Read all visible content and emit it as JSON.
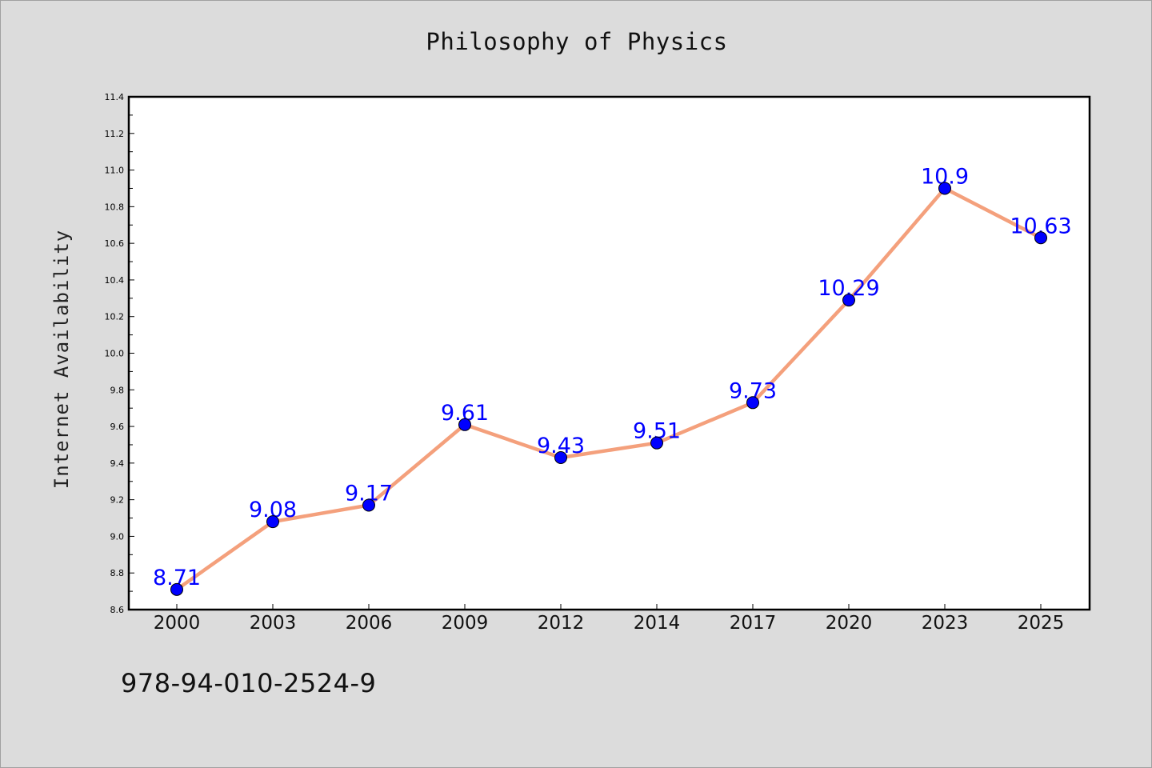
{
  "chart_data": {
    "type": "line",
    "title": "Philosophy of Physics",
    "xlabel": "",
    "ylabel": "Internet Availability",
    "categories": [
      "2000",
      "2003",
      "2006",
      "2009",
      "2012",
      "2014",
      "2017",
      "2020",
      "2023",
      "2025"
    ],
    "series": [
      {
        "values": [
          8.71,
          9.08,
          9.17,
          9.61,
          9.43,
          9.51,
          9.73,
          10.29,
          10.9,
          10.63
        ],
        "data_labels": [
          "8.71",
          "9.08",
          "9.17",
          "9.61",
          "9.43",
          "9.51",
          "9.73",
          "10.29",
          "10.9",
          "10.63"
        ]
      }
    ],
    "ylim": [
      8.6,
      11.4
    ],
    "yticks": [
      "8.6",
      "8.8",
      "9.0",
      "9.2",
      "9.4",
      "9.6",
      "9.8",
      "10.0",
      "10.2",
      "10.4",
      "10.6",
      "10.8",
      "11.0",
      "11.2",
      "11.4"
    ],
    "grid": false,
    "legend": "none",
    "colors": {
      "line": "#f4a07c",
      "marker": "#0000ff",
      "data_label": "#0000ff"
    }
  },
  "footer": {
    "isbn": "978-94-010-2524-9"
  }
}
